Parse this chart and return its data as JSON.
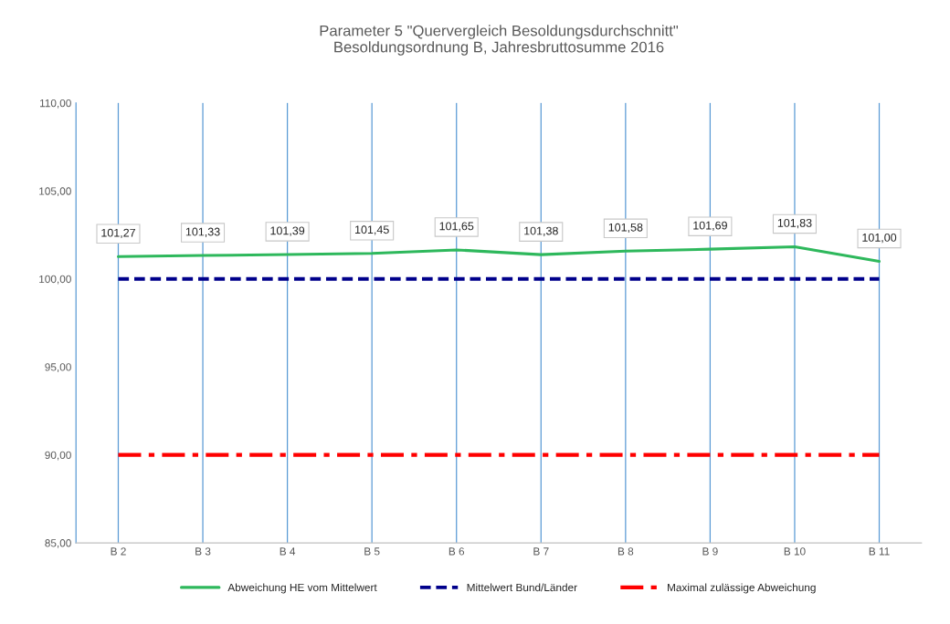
{
  "chart_data": {
    "type": "line",
    "title": "Parameter 5 \"Quervergleich Besoldungsdurchschnitt\"",
    "subtitle": "Besoldungsordnung B, Jahresbruttosumme 2016",
    "categories": [
      "B 2",
      "B 3",
      "B 4",
      "B 5",
      "B 6",
      "B 7",
      "B 8",
      "B 9",
      "B 10",
      "B 11"
    ],
    "series": [
      {
        "name": "Abweichung HE vom Mittelwert",
        "color": "#2eb85c",
        "line_style": "solid",
        "values": [
          101.27,
          101.33,
          101.39,
          101.45,
          101.65,
          101.38,
          101.58,
          101.69,
          101.83,
          101.0
        ],
        "value_labels": [
          "101,27",
          "101,33",
          "101,39",
          "101,45",
          "101,65",
          "101,38",
          "101,58",
          "101,69",
          "101,83",
          "101,00"
        ]
      },
      {
        "name": "Mittelwert Bund/Länder",
        "color": "#00008b",
        "line_style": "dashed",
        "values": [
          100,
          100,
          100,
          100,
          100,
          100,
          100,
          100,
          100,
          100
        ]
      },
      {
        "name": "Maximal zulässige Abweichung",
        "color": "#ff0000",
        "line_style": "dashdot",
        "values": [
          90,
          90,
          90,
          90,
          90,
          90,
          90,
          90,
          90,
          90
        ]
      }
    ],
    "ylim": [
      85,
      110
    ],
    "yticks": [
      {
        "value": 85,
        "label": "85,00"
      },
      {
        "value": 90,
        "label": "90,00"
      },
      {
        "value": 95,
        "label": "95,00"
      },
      {
        "value": 100,
        "label": "100,00"
      },
      {
        "value": 105,
        "label": "105,00"
      },
      {
        "value": 110,
        "label": "110,00"
      }
    ],
    "grid": "x",
    "legend": "bottom",
    "marker": "none"
  }
}
